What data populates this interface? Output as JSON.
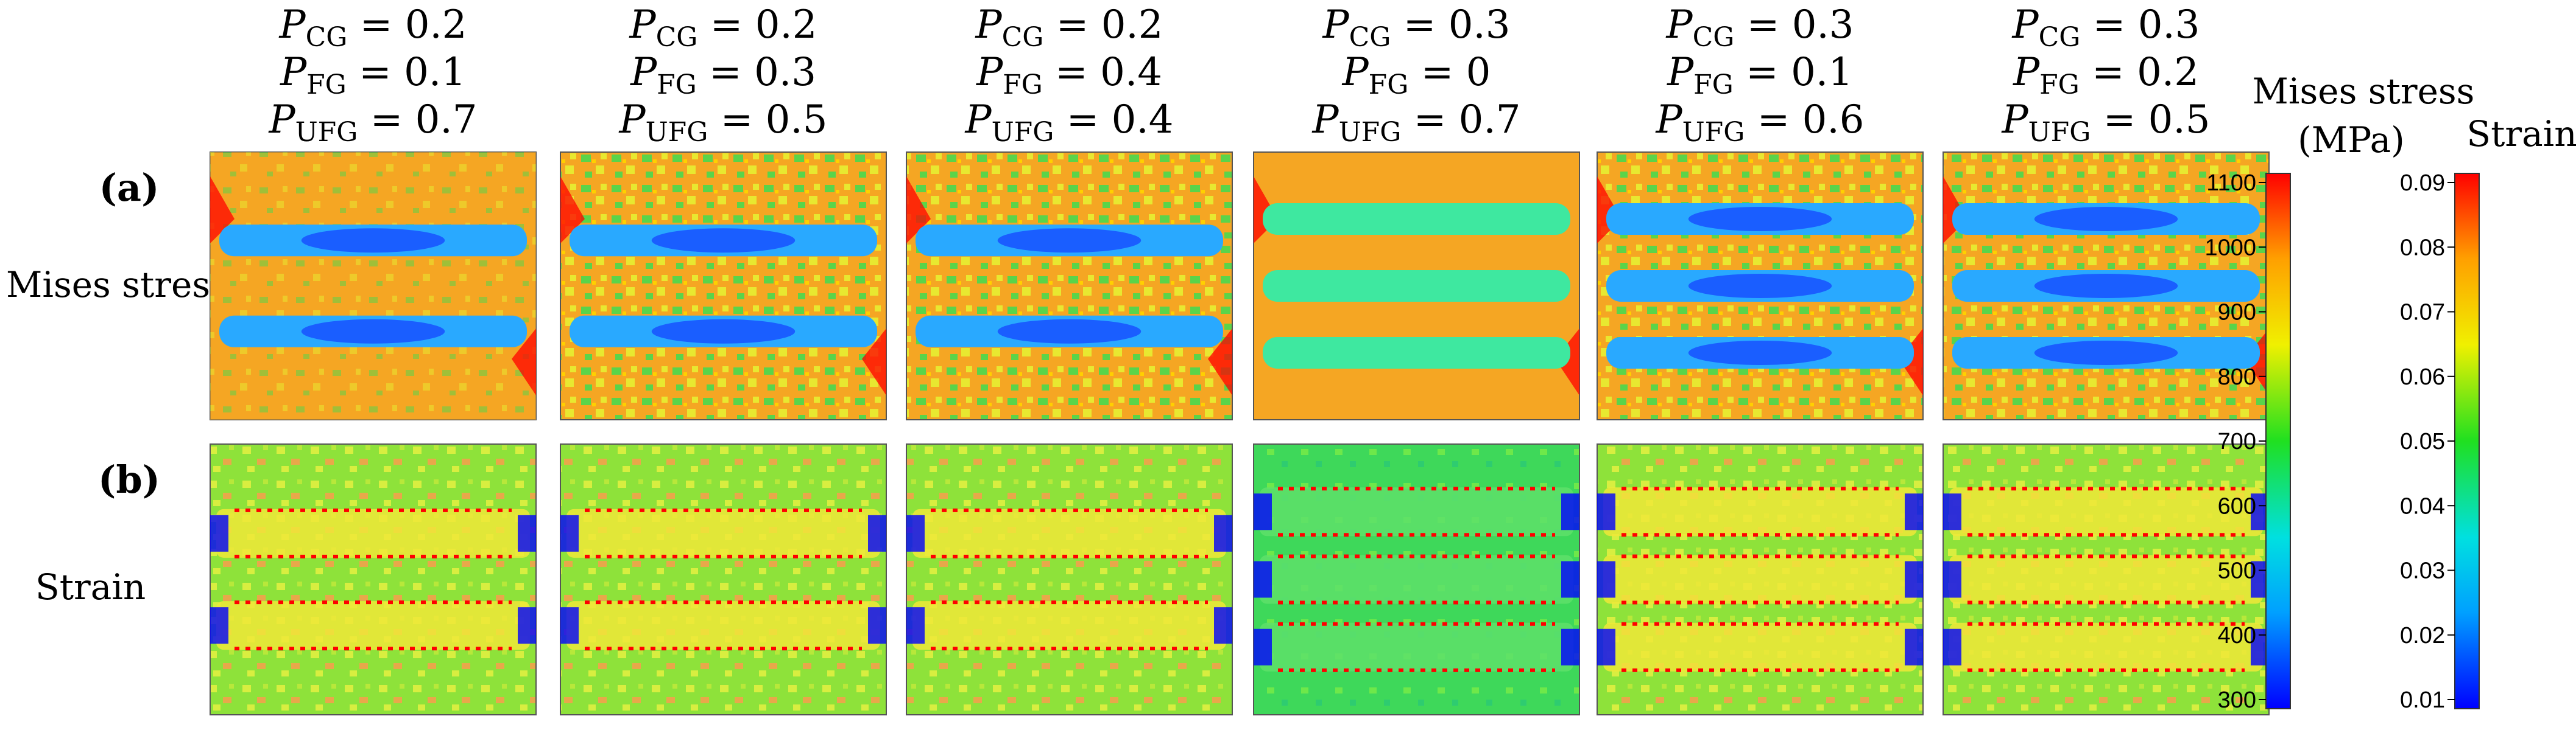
{
  "figure": {
    "row_a_label": "(a)",
    "row_b_label": "(b)",
    "row_a_title": "Mises stress",
    "row_b_title": "Strain",
    "columns": [
      {
        "pcg": "0.2",
        "pfg": "0.1",
        "pufg": "0.7",
        "stress_bands": 2,
        "strain_bands": 2
      },
      {
        "pcg": "0.2",
        "pfg": "0.3",
        "pufg": "0.5",
        "stress_bands": 2,
        "strain_bands": 2
      },
      {
        "pcg": "0.2",
        "pfg": "0.4",
        "pufg": "0.4",
        "stress_bands": 2,
        "strain_bands": 2
      },
      {
        "pcg": "0.3",
        "pfg": "0",
        "pufg": "0.7",
        "stress_bands": 3,
        "strain_bands": 3
      },
      {
        "pcg": "0.3",
        "pfg": "0.1",
        "pufg": "0.6",
        "stress_bands": 3,
        "strain_bands": 3
      },
      {
        "pcg": "0.3",
        "pfg": "0.2",
        "pufg": "0.5",
        "stress_bands": 3,
        "strain_bands": 3
      }
    ],
    "param_names": {
      "p": "P",
      "cg": "CG",
      "fg": "FG",
      "ufg": "UFG",
      "eq": " = "
    }
  },
  "stress_legend": {
    "title_line1": "Mises stress",
    "title_line2": "(MPa)",
    "ticks": [
      "1100",
      "1000",
      "900",
      "800",
      "700",
      "600",
      "500",
      "400",
      "300"
    ],
    "min": 300,
    "max": 1100
  },
  "strain_legend": {
    "title": "Strain",
    "ticks": [
      "0.09",
      "0.08",
      "0.07",
      "0.06",
      "0.05",
      "0.04",
      "0.03",
      "0.02",
      "0.01"
    ],
    "min": 0.01,
    "max": 0.09
  },
  "colors": {
    "blue": "#0000ff",
    "cyan": "#00c8ff",
    "green": "#2ee62e",
    "yellow": "#f0f000",
    "orange": "#ffa000",
    "red": "#ff0000",
    "stress_bg": "#f5a623",
    "strain_bg": "#8ee23a",
    "band_stress": "#29a9ff",
    "band_stress_dark": "#1a5eff",
    "band_strain": "#f0e838"
  }
}
